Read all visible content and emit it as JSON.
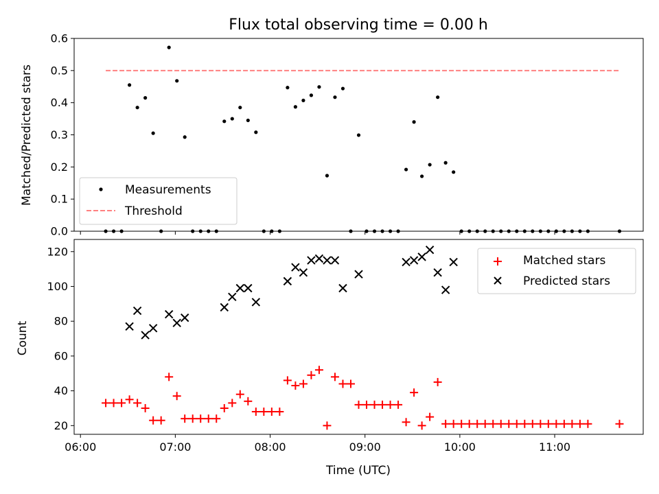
{
  "chart_data": [
    {
      "type": "scatter",
      "title": "Flux total observing time = 0.00 h",
      "xlabel": "",
      "ylabel": "Matched/Predicted stars",
      "ylim": [
        0,
        0.6
      ],
      "yticks": [
        "0.0",
        "0.1",
        "0.2",
        "0.3",
        "0.4",
        "0.5",
        "0.6"
      ],
      "legend_position": "lower-left",
      "series": [
        {
          "name": "Measurements",
          "color": "#000000",
          "marker": "dot",
          "x": [
            "06:16",
            "06:21",
            "06:26",
            "06:31",
            "06:36",
            "06:41",
            "06:46",
            "06:51",
            "06:56",
            "07:01",
            "07:06",
            "07:11",
            "07:16",
            "07:21",
            "07:26",
            "07:31",
            "07:36",
            "07:41",
            "07:46",
            "07:51",
            "07:56",
            "08:01",
            "08:06",
            "08:11",
            "08:16",
            "08:21",
            "08:26",
            "08:31",
            "08:36",
            "08:41",
            "08:46",
            "08:51",
            "08:56",
            "09:01",
            "09:06",
            "09:11",
            "09:16",
            "09:21",
            "09:26",
            "09:31",
            "09:36",
            "09:41",
            "09:46",
            "09:51",
            "09:56",
            "10:01",
            "10:06",
            "10:11",
            "10:16",
            "10:21",
            "10:26",
            "10:31",
            "10:36",
            "10:41",
            "10:46",
            "10:51",
            "10:56",
            "11:01",
            "11:06",
            "11:11",
            "11:16",
            "11:21",
            "11:41"
          ],
          "y": [
            0,
            0,
            0,
            0.455,
            0.385,
            0.415,
            0.305,
            0,
            0.572,
            0.468,
            0.293,
            0,
            0,
            0,
            0,
            0.342,
            0.35,
            0.385,
            0.345,
            0.308,
            0,
            0,
            0,
            0.447,
            0.387,
            0.407,
            0.423,
            0.449,
            0.173,
            0.417,
            0.444,
            0,
            0.299,
            0,
            0,
            0,
            0,
            0,
            0.192,
            0.34,
            0.171,
            0.207,
            0.417,
            0.213,
            0.184,
            0,
            0,
            0,
            0,
            0,
            0,
            0,
            0,
            0,
            0,
            0,
            0,
            0,
            0,
            0,
            0,
            0,
            0
          ]
        },
        {
          "name": "Threshold",
          "color": "#ff8080",
          "style": "dashed",
          "x": [
            "06:16",
            "11:41"
          ],
          "y": [
            0.5,
            0.5
          ]
        }
      ]
    },
    {
      "type": "scatter",
      "title": "",
      "xlabel": "Time (UTC)",
      "ylabel": "Count",
      "ylim": [
        15,
        127
      ],
      "yticks": [
        "20",
        "40",
        "60",
        "80",
        "100",
        "120"
      ],
      "xticks": [
        "06:00",
        "07:00",
        "08:00",
        "09:00",
        "10:00",
        "11:00"
      ],
      "legend_position": "top-right",
      "series": [
        {
          "name": "Matched stars",
          "color": "#ff0000",
          "marker": "plus",
          "x": [
            "06:16",
            "06:21",
            "06:26",
            "06:31",
            "06:36",
            "06:41",
            "06:46",
            "06:51",
            "06:56",
            "07:01",
            "07:06",
            "07:11",
            "07:16",
            "07:21",
            "07:26",
            "07:31",
            "07:36",
            "07:41",
            "07:46",
            "07:51",
            "07:56",
            "08:01",
            "08:06",
            "08:11",
            "08:16",
            "08:21",
            "08:26",
            "08:31",
            "08:36",
            "08:41",
            "08:46",
            "08:51",
            "08:56",
            "09:01",
            "09:06",
            "09:11",
            "09:16",
            "09:21",
            "09:26",
            "09:31",
            "09:36",
            "09:41",
            "09:46",
            "09:51",
            "09:56",
            "10:01",
            "10:06",
            "10:11",
            "10:16",
            "10:21",
            "10:26",
            "10:31",
            "10:36",
            "10:41",
            "10:46",
            "10:51",
            "10:56",
            "11:01",
            "11:06",
            "11:11",
            "11:16",
            "11:21",
            "11:41"
          ],
          "y": [
            33,
            33,
            33,
            35,
            33,
            30,
            23,
            23,
            48,
            37,
            24,
            24,
            24,
            24,
            24,
            30,
            33,
            38,
            34,
            28,
            28,
            28,
            28,
            46,
            43,
            44,
            49,
            52,
            20,
            48,
            44,
            44,
            32,
            32,
            32,
            32,
            32,
            32,
            22,
            39,
            20,
            25,
            45,
            21,
            21,
            21,
            21,
            21,
            21,
            21,
            21,
            21,
            21,
            21,
            21,
            21,
            21,
            21,
            21,
            21,
            21,
            21,
            21
          ]
        },
        {
          "name": "Predicted stars",
          "color": "#000000",
          "marker": "x",
          "x": [
            "06:31",
            "06:36",
            "06:41",
            "06:46",
            "06:56",
            "07:01",
            "07:06",
            "07:31",
            "07:36",
            "07:41",
            "07:46",
            "07:51",
            "08:11",
            "08:16",
            "08:21",
            "08:26",
            "08:31",
            "08:36",
            "08:41",
            "08:46",
            "08:56",
            "09:26",
            "09:31",
            "09:36",
            "09:41",
            "09:46",
            "09:51",
            "09:56"
          ],
          "y": [
            77,
            86,
            72,
            76,
            84,
            79,
            82,
            88,
            94,
            99,
            99,
            91,
            103,
            111,
            108,
            115,
            116,
            115,
            115,
            99,
            107,
            114,
            115,
            117,
            121,
            108,
            98,
            114
          ]
        }
      ]
    }
  ]
}
